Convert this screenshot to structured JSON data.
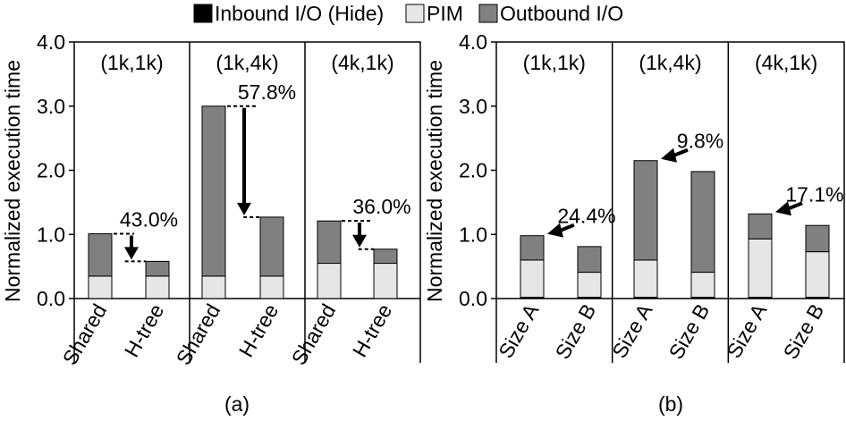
{
  "legend": {
    "items": [
      {
        "label": "Inbound I/O (Hide)",
        "color": "#000000"
      },
      {
        "label": "PIM",
        "color": "#e6e6e6"
      },
      {
        "label": "Outbound I/O",
        "color": "#808080"
      }
    ]
  },
  "chart_data": [
    {
      "type": "bar",
      "stacked": true,
      "caption": "(a)",
      "ylabel": "Normalized execution time",
      "ylim": [
        0,
        4.0
      ],
      "yticks": [
        "0.0",
        "1.0",
        "2.0",
        "3.0",
        "4.0"
      ],
      "groups": [
        {
          "label": "(1k,1k)",
          "categories": [
            "Shared",
            "H-tree"
          ],
          "reduction": "43.0%",
          "inbound": [
            0.0,
            0.0
          ],
          "pim": [
            0.35,
            0.35
          ],
          "outbound": [
            0.66,
            0.23
          ]
        },
        {
          "label": "(1k,4k)",
          "categories": [
            "Shared",
            "H-tree"
          ],
          "reduction": "57.8%",
          "inbound": [
            0.0,
            0.0
          ],
          "pim": [
            0.35,
            0.35
          ],
          "outbound": [
            2.65,
            0.92
          ]
        },
        {
          "label": "(4k,1k)",
          "categories": [
            "Shared",
            "H-tree"
          ],
          "reduction": "36.0%",
          "inbound": [
            0.0,
            0.0
          ],
          "pim": [
            0.55,
            0.55
          ],
          "outbound": [
            0.66,
            0.22
          ]
        }
      ]
    },
    {
      "type": "bar",
      "stacked": true,
      "caption": "(b)",
      "ylabel": "Normalized execution time",
      "ylim": [
        0,
        4.0
      ],
      "yticks": [
        "0.0",
        "1.0",
        "2.0",
        "3.0",
        "4.0"
      ],
      "groups": [
        {
          "label": "(1k,1k)",
          "categories": [
            "Size A",
            "Size B"
          ],
          "reduction": "24.4%",
          "inbound": [
            0.02,
            0.02
          ],
          "pim": [
            0.58,
            0.39
          ],
          "outbound": [
            0.38,
            0.4
          ]
        },
        {
          "label": "(1k,4k)",
          "categories": [
            "Size A",
            "Size B"
          ],
          "reduction": "9.8%",
          "inbound": [
            0.02,
            0.02
          ],
          "pim": [
            0.58,
            0.39
          ],
          "outbound": [
            1.55,
            1.57
          ]
        },
        {
          "label": "(4k,1k)",
          "categories": [
            "Size A",
            "Size B"
          ],
          "reduction": "17.1%",
          "inbound": [
            0.02,
            0.02
          ],
          "pim": [
            0.91,
            0.71
          ],
          "outbound": [
            0.39,
            0.41
          ]
        }
      ]
    }
  ]
}
